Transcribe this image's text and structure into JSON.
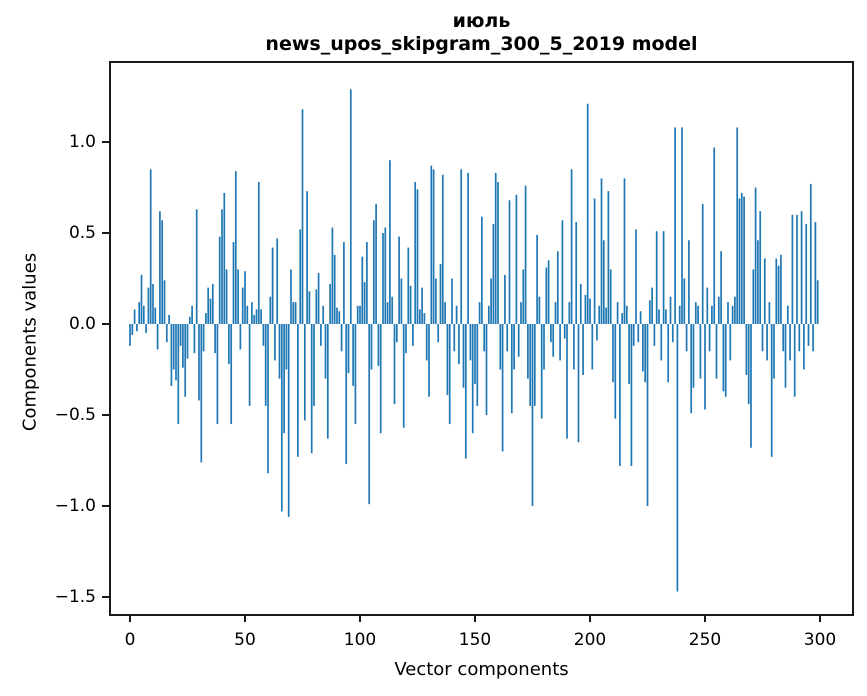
{
  "chart_data": {
    "type": "bar",
    "title_line1": "июль",
    "title_line2": "news_upos_skipgram_300_5_2019 model",
    "title": "июль\nnews_upos_skipgram_300_5_2019 model",
    "xlabel": "Vector components",
    "ylabel": "Components values",
    "bar_color": "#1f77b4",
    "spine_color": "#1a1a1a",
    "x_start": 0,
    "n_bars": 300,
    "xlim": [
      -9,
      316
    ],
    "ylim": [
      -1.59,
      1.45
    ],
    "grid": false,
    "legend": null,
    "x_ticks": [
      0,
      50,
      100,
      150,
      200,
      250,
      300
    ],
    "x_tick_labels": [
      "0",
      "50",
      "100",
      "150",
      "200",
      "250",
      "300"
    ],
    "y_ticks": [
      1.0,
      0.5,
      0.0,
      -0.5,
      -1.0,
      -1.5
    ],
    "y_tick_labels": [
      "1.0",
      "0.5",
      "0.0",
      "−0.5",
      "−1.0",
      "−1.5"
    ],
    "values": [
      -0.12,
      -0.06,
      0.08,
      -0.04,
      0.12,
      0.27,
      0.1,
      -0.05,
      0.2,
      0.85,
      0.22,
      0.09,
      -0.14,
      0.62,
      0.57,
      0.24,
      -0.1,
      0.05,
      -0.34,
      -0.25,
      -0.31,
      -0.55,
      -0.12,
      -0.24,
      -0.4,
      -0.19,
      0.04,
      0.1,
      -0.16,
      0.63,
      -0.42,
      -0.76,
      -0.15,
      0.06,
      0.2,
      0.14,
      0.22,
      -0.16,
      -0.55,
      0.48,
      0.63,
      0.72,
      0.3,
      -0.22,
      -0.55,
      0.45,
      0.84,
      0.3,
      -0.14,
      0.2,
      0.29,
      0.1,
      -0.45,
      0.12,
      0.05,
      0.08,
      0.78,
      0.08,
      -0.12,
      -0.45,
      -0.82,
      0.15,
      0.42,
      -0.2,
      0.47,
      -0.3,
      -1.03,
      -0.6,
      -0.25,
      -1.06,
      0.3,
      0.12,
      0.12,
      -0.73,
      0.52,
      1.18,
      -0.53,
      0.73,
      0.18,
      -0.71,
      -0.45,
      0.19,
      0.28,
      -0.12,
      0.1,
      -0.3,
      -0.63,
      0.22,
      0.53,
      0.38,
      0.09,
      0.07,
      -0.15,
      0.45,
      -0.77,
      -0.27,
      1.29,
      -0.34,
      -0.55,
      0.1,
      0.1,
      0.37,
      0.23,
      0.45,
      -0.99,
      -0.25,
      0.57,
      0.66,
      -0.23,
      -0.6,
      0.5,
      0.53,
      0.12,
      0.9,
      0.15,
      -0.44,
      -0.1,
      0.48,
      0.25,
      -0.57,
      -0.16,
      0.42,
      0.21,
      -0.12,
      0.78,
      0.74,
      0.08,
      0.2,
      0.06,
      -0.2,
      -0.4,
      0.87,
      0.85,
      0.25,
      -0.1,
      0.33,
      0.82,
      0.12,
      -0.39,
      -0.55,
      0.25,
      -0.15,
      0.1,
      -0.22,
      0.85,
      -0.35,
      -0.74,
      0.83,
      -0.2,
      -0.6,
      -0.33,
      -0.45,
      0.12,
      0.59,
      -0.15,
      -0.5,
      0.1,
      0.25,
      0.55,
      0.83,
      0.78,
      -0.25,
      -0.7,
      0.27,
      -0.15,
      0.68,
      -0.49,
      -0.25,
      0.71,
      -0.18,
      0.12,
      0.3,
      0.76,
      -0.3,
      -0.45,
      -1.0,
      -0.45,
      0.49,
      0.15,
      -0.52,
      -0.25,
      0.31,
      0.35,
      -0.1,
      -0.18,
      0.12,
      0.4,
      -0.2,
      0.57,
      -0.08,
      -0.63,
      0.12,
      0.85,
      -0.25,
      0.56,
      -0.65,
      0.22,
      -0.28,
      0.16,
      1.21,
      0.14,
      -0.25,
      0.69,
      -0.09,
      0.1,
      0.8,
      0.46,
      0.09,
      0.73,
      0.3,
      -0.32,
      -0.52,
      0.12,
      -0.78,
      0.06,
      0.8,
      0.1,
      -0.33,
      -0.78,
      -0.12,
      0.52,
      -0.1,
      0.07,
      -0.26,
      -0.32,
      -1.0,
      0.13,
      0.2,
      -0.12,
      0.51,
      0.08,
      -0.2,
      0.51,
      0.08,
      -0.32,
      0.15,
      -0.1,
      1.08,
      -1.47,
      0.1,
      1.08,
      0.25,
      -0.15,
      0.46,
      -0.49,
      -0.35,
      0.12,
      0.1,
      -0.3,
      0.66,
      -0.47,
      0.2,
      -0.15,
      0.1,
      0.97,
      -0.3,
      0.15,
      0.4,
      -0.37,
      -0.4,
      0.12,
      -0.2,
      0.1,
      0.15,
      1.08,
      0.69,
      0.72,
      0.7,
      -0.28,
      -0.44,
      -0.68,
      0.3,
      0.75,
      0.46,
      0.62,
      -0.15,
      0.36,
      -0.2,
      0.12,
      -0.73,
      -0.3,
      0.36,
      0.32,
      0.38,
      -0.15,
      -0.35,
      0.1,
      -0.2,
      0.6,
      -0.4,
      0.6,
      -0.15,
      0.62,
      -0.25,
      0.55,
      -0.12,
      0.77,
      -0.15,
      0.56,
      0.24
    ]
  }
}
